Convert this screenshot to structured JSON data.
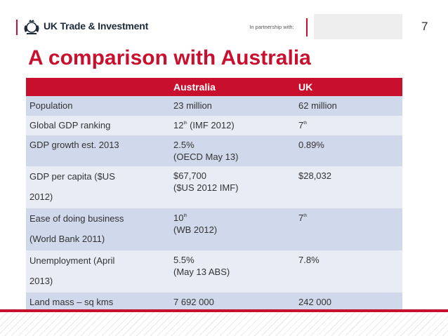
{
  "header": {
    "brand": "UK Trade & Investment",
    "partner_label": "In partnership with:",
    "page_number": "7",
    "crest_icon": "royal-crest-icon",
    "accent_color": "#c8102e"
  },
  "title": "A comparison with Australia",
  "table": {
    "columns": [
      "",
      "Australia",
      "UK"
    ],
    "rows": [
      {
        "label": [
          "Population"
        ],
        "australia": [
          "23 million"
        ],
        "uk": [
          "62 million"
        ]
      },
      {
        "label": [
          "Global GDP ranking"
        ],
        "australia": {
          "num": "12",
          "sup": "th",
          "rest": " (IMF 2012)"
        },
        "uk": {
          "num": "7",
          "sup": "th"
        }
      },
      {
        "label": [
          "GDP growth est. 2013"
        ],
        "australia": [
          "2.5%",
          "(OECD May 13)"
        ],
        "uk": [
          "0.89%"
        ]
      },
      {
        "label": [
          "GDP per capita ($US",
          "2012)"
        ],
        "australia": [
          "$67,700",
          "($US 2012 IMF)"
        ],
        "uk": [
          "$28,032"
        ]
      },
      {
        "label": [
          "Ease of doing business",
          "(World Bank 2011)"
        ],
        "australia": {
          "num": "10",
          "sup": "th",
          "line2": "(WB 2012)"
        },
        "uk": {
          "num": "7",
          "sup": "th"
        }
      },
      {
        "label": [
          "Unemployment (April",
          "2013)"
        ],
        "australia": [
          "5.5%",
          "(May 13 ABS)"
        ],
        "uk": [
          "7.8%"
        ]
      },
      {
        "label": [
          "Land mass – sq kms"
        ],
        "australia": [
          "7 692 000"
        ],
        "uk": [
          "242 000"
        ]
      }
    ]
  }
}
